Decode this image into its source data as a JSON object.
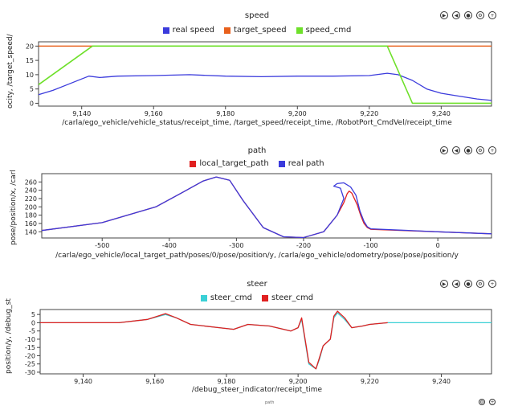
{
  "panels": [
    {
      "id": "speed",
      "title": "speed",
      "legend": [
        {
          "name": "real speed",
          "color": "#3b3bdc"
        },
        {
          "name": "target_speed",
          "color": "#e8601c"
        },
        {
          "name": "speed_cmd",
          "color": "#6ee02a"
        }
      ],
      "xlabel": "/carla/ego_vehicle/vehicle_status/receipt_time, /target_speed/receipt_time, /RobotPort_CmdVel/receipt_time",
      "ylabel": "ocity, /target_speed/",
      "icons": [
        "play-icon",
        "rewind-icon",
        "record-icon",
        "settings-icon",
        "zoom-icon"
      ]
    },
    {
      "id": "path",
      "title": "path",
      "legend": [
        {
          "name": "local_target_path",
          "color": "#e02020"
        },
        {
          "name": "real path",
          "color": "#3b3bdc"
        }
      ],
      "xlabel": "/carla/ego_vehicle/local_target_path/poses/0/pose/position/y, /carla/ego_vehicle/odometry/pose/pose/position/y",
      "ylabel": "pose/position/x, /carl",
      "icons": [
        "play-icon",
        "rewind-icon",
        "record-icon",
        "settings-icon",
        "zoom-icon"
      ]
    },
    {
      "id": "steer",
      "title": "steer",
      "legend": [
        {
          "name": "steer_cmd",
          "color": "#3ad0d6"
        },
        {
          "name": "steer_cmd",
          "color": "#e02020"
        }
      ],
      "xlabel": "/debug_steer_indicator/receipt_time",
      "ylabel": "position/y, /debug_st",
      "icons": [
        "play-icon",
        "rewind-icon",
        "record-icon",
        "settings-icon",
        "zoom-icon"
      ]
    }
  ],
  "footer_text": "path",
  "chart_data": [
    {
      "type": "line",
      "title": "speed",
      "xlabel": "/carla/ego_vehicle/vehicle_status/receipt_time, /target_speed/receipt_time, /RobotPort_CmdVel/receipt_time",
      "ylabel": "ocity, /target_speed/",
      "xlim": [
        9128,
        9254
      ],
      "ylim": [
        -1,
        21.5
      ],
      "xticks": [
        9140,
        9160,
        9180,
        9200,
        9220,
        9240
      ],
      "xtick_labels": [
        "9,140",
        "9,160",
        "9,180",
        "9,200",
        "9,220",
        "9,240"
      ],
      "yticks": [
        0,
        5,
        10,
        15,
        20
      ],
      "series": [
        {
          "name": "real speed",
          "color": "#3b3bdc",
          "x": [
            9128,
            9132,
            9136,
            9140,
            9142,
            9145,
            9150,
            9160,
            9170,
            9180,
            9190,
            9200,
            9210,
            9220,
            9225,
            9228,
            9232,
            9236,
            9240,
            9245,
            9250,
            9254
          ],
          "y": [
            3,
            4.5,
            6.5,
            8.5,
            9.5,
            9,
            9.5,
            9.7,
            10,
            9.5,
            9.3,
            9.5,
            9.5,
            9.7,
            10.5,
            10,
            8,
            5,
            3.5,
            2.5,
            1.5,
            1
          ]
        },
        {
          "name": "target_speed",
          "color": "#e8601c",
          "x": [
            9128,
            9254
          ],
          "y": [
            20,
            20
          ]
        },
        {
          "name": "speed_cmd",
          "color": "#6ee02a",
          "x": [
            9128,
            9143,
            9225,
            9232,
            9254
          ],
          "y": [
            6.5,
            20,
            20,
            0,
            0
          ]
        }
      ]
    },
    {
      "type": "line",
      "title": "path",
      "xlabel": "/carla/ego_vehicle/local_target_path/poses/0/pose/position/y, /carla/ego_vehicle/odometry/pose/pose/position/y",
      "ylabel": "pose/position/x, /carl",
      "xlim": [
        -590,
        80
      ],
      "ylim": [
        125,
        280
      ],
      "xticks": [
        -500,
        -400,
        -300,
        -200,
        -100,
        0
      ],
      "xtick_labels": [
        "-500",
        "-400",
        "-300",
        "-200",
        "-100",
        "0"
      ],
      "yticks": [
        140,
        160,
        180,
        200,
        220,
        240,
        260
      ],
      "series": [
        {
          "name": "local_target_path",
          "color": "#e02020",
          "x": [
            -590,
            -500,
            -420,
            -380,
            -350,
            -330,
            -310,
            -290,
            -260,
            -230,
            -200,
            -170,
            -150,
            -140,
            -135,
            -132,
            -128,
            -120,
            -115,
            -110,
            -105,
            -100,
            0,
            80
          ],
          "y": [
            143,
            162,
            200,
            235,
            262,
            272,
            264,
            215,
            150,
            128,
            126,
            140,
            180,
            210,
            232,
            238,
            233,
            205,
            180,
            160,
            150,
            146,
            140,
            135
          ]
        },
        {
          "name": "real path",
          "color": "#3b3bdc",
          "x": [
            -590,
            -500,
            -420,
            -380,
            -350,
            -330,
            -310,
            -290,
            -260,
            -230,
            -200,
            -170,
            -150,
            -140,
            -145,
            -155,
            -150,
            -140,
            -130,
            -122,
            -116,
            -110,
            -105,
            -100,
            0,
            80
          ],
          "y": [
            143,
            162,
            200,
            235,
            262,
            272,
            264,
            215,
            150,
            128,
            126,
            140,
            180,
            220,
            245,
            250,
            256,
            258,
            248,
            228,
            190,
            165,
            152,
            147,
            140,
            135
          ]
        }
      ]
    },
    {
      "type": "line",
      "title": "steer",
      "xlabel": "/debug_steer_indicator/receipt_time",
      "ylabel": "position/y, /debug_st",
      "xlim": [
        9128,
        9254
      ],
      "ylim": [
        -31,
        8
      ],
      "xticks": [
        9140,
        9160,
        9180,
        9200,
        9220,
        9240
      ],
      "xtick_labels": [
        "9,140",
        "9,160",
        "9,180",
        "9,200",
        "9,220",
        "9,240"
      ],
      "yticks": [
        5,
        0,
        -5,
        -10,
        -15,
        -20,
        -25,
        -30
      ],
      "series": [
        {
          "name": "steer_cmd",
          "color": "#3ad0d6",
          "x": [
            9128,
            9150,
            9158,
            9163,
            9166,
            9170,
            9178,
            9182,
            9186,
            9192,
            9198,
            9200,
            9201,
            9203,
            9205,
            9206,
            9207,
            9208,
            9209,
            9210,
            9211,
            9213,
            9215,
            9218,
            9220,
            9225,
            9254
          ],
          "y": [
            0,
            0,
            2,
            5,
            3,
            -1,
            -3,
            -4,
            -1,
            -2,
            -5,
            -3,
            2,
            -25,
            -28,
            -22,
            -14,
            -12,
            -10,
            3,
            6,
            2,
            -3,
            -2,
            -1,
            0,
            0
          ]
        },
        {
          "name": "steer_cmd",
          "color": "#e02020",
          "x": [
            9128,
            9150,
            9158,
            9163,
            9166,
            9170,
            9178,
            9182,
            9186,
            9192,
            9198,
            9200,
            9201,
            9203,
            9205,
            9206,
            9207,
            9208,
            9209,
            9210,
            9211,
            9213,
            9215,
            9218,
            9220,
            9225
          ],
          "y": [
            0,
            0,
            2,
            5.5,
            3,
            -1,
            -3,
            -4,
            -1,
            -2,
            -5,
            -3,
            3,
            -24,
            -28,
            -21,
            -14,
            -12,
            -10,
            4,
            7,
            3,
            -3,
            -2,
            -1,
            0
          ]
        }
      ]
    }
  ]
}
